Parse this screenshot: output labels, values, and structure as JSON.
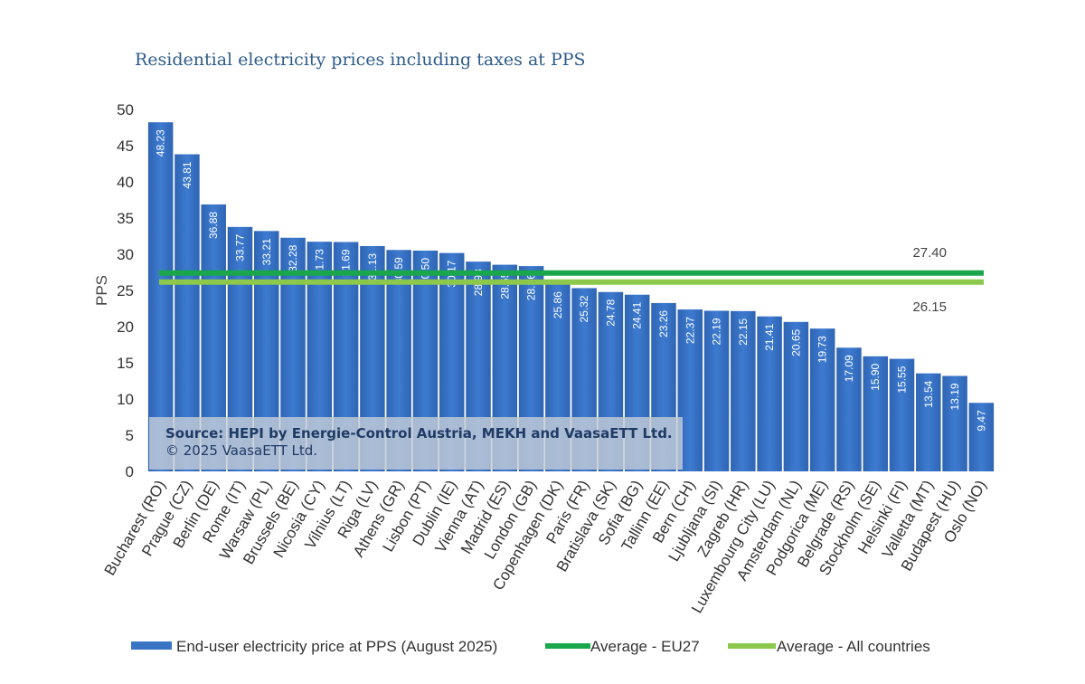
{
  "chart_data": {
    "type": "bar",
    "title": "Residential electricity prices including taxes at PPS",
    "ylabel": "PPS",
    "xlabel": "",
    "ylim": [
      0,
      50
    ],
    "yticks": [
      0,
      5,
      10,
      15,
      20,
      25,
      30,
      35,
      40,
      45,
      50
    ],
    "grid": false,
    "legend_position": "bottom",
    "categories": [
      "Bucharest (RO)",
      "Prague (CZ)",
      "Berlin (DE)",
      "Rome (IT)",
      "Warsaw (PL)",
      "Brussels (BE)",
      "Nicosia (CY)",
      "Vilnius (LT)",
      "Riga (LV)",
      "Athens (GR)",
      "Lisbon (PT)",
      "Dublin (IE)",
      "Vienna (AT)",
      "Madrid (ES)",
      "London (GB)",
      "Copenhagen (DK)",
      "Paris (FR)",
      "Bratislava (SK)",
      "Sofia (BG)",
      "Tallinn (EE)",
      "Bern (CH)",
      "Ljubljana (SI)",
      "Zagreb (HR)",
      "Luxembourg City (LU)",
      "Amsterdam (NL)",
      "Podgorica (ME)",
      "Belgrade (RS)",
      "Stockholm (SE)",
      "Helsinki (FI)",
      "Valletta (MT)",
      "Budapest (HU)",
      "Oslo (NO)"
    ],
    "values": [
      48.23,
      43.81,
      36.88,
      33.77,
      33.21,
      32.28,
      31.73,
      31.69,
      31.13,
      30.59,
      30.5,
      30.17,
      28.98,
      28.55,
      28.36,
      25.86,
      25.32,
      24.78,
      24.41,
      23.26,
      22.37,
      22.19,
      22.15,
      21.41,
      20.65,
      19.73,
      17.09,
      15.9,
      15.55,
      13.54,
      13.19,
      9.47
    ],
    "value_labels": [
      "48.23",
      "43.81",
      "36.88",
      "33.77",
      "33.21",
      "32.28",
      "31.73",
      "31.69",
      "31.13",
      "30.59",
      "30.50",
      "30.17",
      "28.98",
      "28.55",
      "28.36",
      "25.86",
      "25.32",
      "24.78",
      "24.41",
      "23.26",
      "22.37",
      "22.19",
      "22.15",
      "21.41",
      "20.65",
      "19.73",
      "17.09",
      "15.90",
      "15.55",
      "13.54",
      "13.19",
      "9.47"
    ],
    "series": [
      {
        "name": "End-user electricity price at PPS (August 2025)",
        "color": "#3a74c4"
      }
    ],
    "averages": [
      {
        "name": "Average - EU27",
        "value": 27.4,
        "label": "27.40",
        "color": "#1aa64b"
      },
      {
        "name": "Average - All countries",
        "value": 26.15,
        "label": "26.15",
        "color": "#8cc84b"
      }
    ],
    "annotation": {
      "line1": "Source: HEPI by Energie-Control Austria, MEKH and VaasaETT Ltd.",
      "line2": "© 2025 VaasaETT Ltd."
    }
  }
}
